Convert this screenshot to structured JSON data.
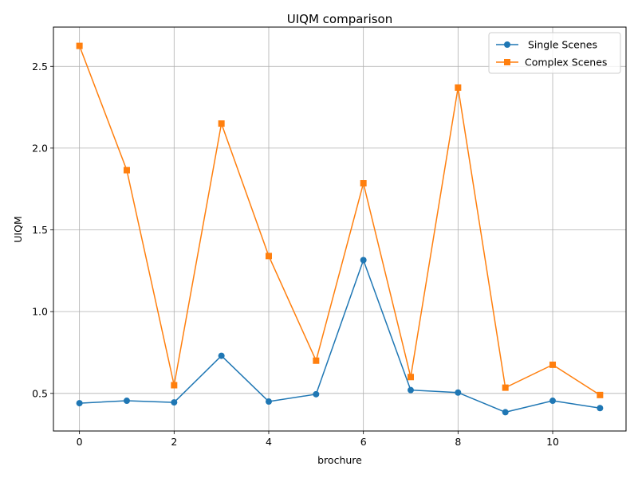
{
  "chart_data": {
    "type": "line",
    "title": "UIQM comparison",
    "xlabel": "brochure",
    "ylabel": "UIQM",
    "x": [
      0,
      1,
      2,
      3,
      4,
      5,
      6,
      7,
      8,
      9,
      10,
      11
    ],
    "xlim": [
      -0.55,
      11.55
    ],
    "ylim": [
      0.27,
      2.74
    ],
    "xticks": [
      0,
      2,
      4,
      6,
      8,
      10
    ],
    "yticks": [
      0.5,
      1.0,
      1.5,
      2.0,
      2.5
    ],
    "xtick_labels": [
      "0",
      "2",
      "4",
      "6",
      "8",
      "10"
    ],
    "ytick_labels": [
      "0.5",
      "1.0",
      "1.5",
      "2.0",
      "2.5"
    ],
    "grid": true,
    "legend_position": "top-right",
    "series": [
      {
        "name": " Single Scenes",
        "color": "#1f77b4",
        "marker": "circle",
        "values": [
          0.44,
          0.455,
          0.445,
          0.73,
          0.45,
          0.495,
          1.315,
          0.52,
          0.505,
          0.385,
          0.455,
          0.41
        ]
      },
      {
        "name": "Complex Scenes",
        "color": "#ff7f0e",
        "marker": "square",
        "values": [
          2.625,
          1.865,
          0.55,
          2.15,
          1.34,
          0.7,
          1.785,
          0.6,
          2.37,
          0.535,
          0.675,
          0.49
        ]
      }
    ]
  }
}
